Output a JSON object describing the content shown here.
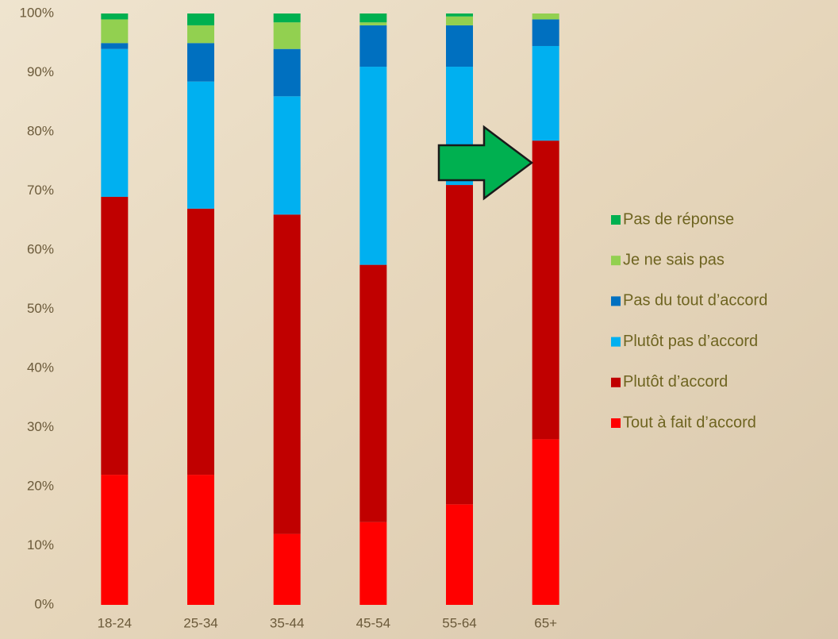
{
  "chart_data": {
    "type": "stacked_bar",
    "categories": [
      "18-24",
      "25-34",
      "35-44",
      "45-54",
      "55-64",
      "65+"
    ],
    "series": [
      {
        "name": "Tout à fait d’accord",
        "color": "#ff0000",
        "values": [
          22,
          22,
          12,
          14,
          17,
          28
        ]
      },
      {
        "name": "Plutôt d’accord",
        "color": "#c00000",
        "values": [
          47,
          45,
          54,
          43.5,
          54,
          50.5
        ]
      },
      {
        "name": "Plutôt pas d’accord",
        "color": "#00b0f0",
        "values": [
          25,
          21.5,
          20,
          33.5,
          20,
          16
        ]
      },
      {
        "name": "Pas du tout d’accord",
        "color": "#0070c0",
        "values": [
          1,
          6.5,
          8,
          7,
          7,
          4.5
        ]
      },
      {
        "name": "Je ne sais pas",
        "color": "#92d050",
        "values": [
          4,
          3,
          4.5,
          0.5,
          1.5,
          1
        ]
      },
      {
        "name": "Pas de réponse",
        "color": "#00b050",
        "values": [
          1,
          2,
          1.5,
          1.5,
          0.5,
          0
        ]
      }
    ],
    "ylim": [
      0,
      100
    ],
    "yticks": [
      {
        "value": 0,
        "label": "0%"
      },
      {
        "value": 10,
        "label": "10%"
      },
      {
        "value": 20,
        "label": "20%"
      },
      {
        "value": 30,
        "label": "30%"
      },
      {
        "value": 40,
        "label": "40%"
      },
      {
        "value": 50,
        "label": "50%"
      },
      {
        "value": 60,
        "label": "60%"
      },
      {
        "value": 70,
        "label": "70%"
      },
      {
        "value": 80,
        "label": "80%"
      },
      {
        "value": 90,
        "label": "90%"
      },
      {
        "value": 100,
        "label": "100%"
      }
    ],
    "legend": "right"
  }
}
